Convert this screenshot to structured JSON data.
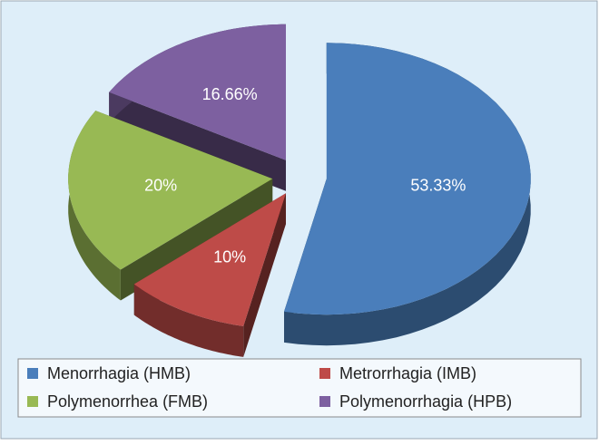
{
  "chart_data": {
    "type": "pie",
    "categories": [
      "Menorrhagia (HMB)",
      "Metrorrhagia (IMB)",
      "Polymenorrhea (FMB)",
      "Polymenorrhagia (HPB)"
    ],
    "values": [
      53.33,
      10,
      20,
      16.66
    ],
    "value_labels": [
      "53.33%",
      "10%",
      "20%",
      "16.66%"
    ],
    "colors": [
      "#4a7ebb",
      "#be4b48",
      "#98b954",
      "#7d60a0"
    ],
    "legend": "bottom"
  }
}
